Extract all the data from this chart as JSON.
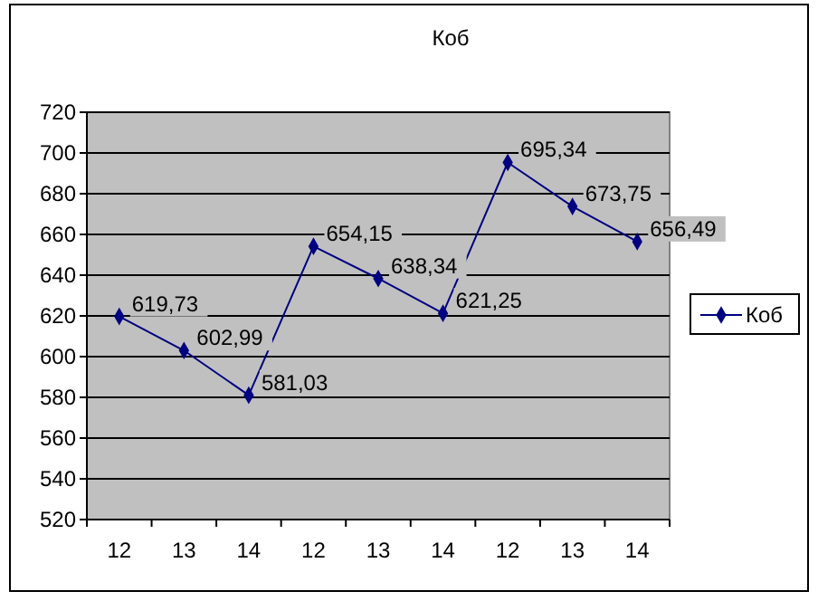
{
  "chart_data": {
    "type": "line",
    "title": "Коб",
    "categories": [
      "12",
      "13",
      "14",
      "12",
      "13",
      "14",
      "12",
      "13",
      "14"
    ],
    "series": [
      {
        "name": "Коб",
        "color": "#000080",
        "values": [
          619.73,
          602.99,
          581.03,
          654.15,
          638.34,
          621.25,
          695.34,
          673.75,
          656.49
        ],
        "value_labels": [
          "619,73",
          "602,99",
          "581,03",
          "654,15",
          "638,34",
          "621,25",
          "695,34",
          "673,75",
          "656,49"
        ]
      }
    ],
    "ylim": [
      520,
      720
    ],
    "yticks": [
      520,
      540,
      560,
      580,
      600,
      620,
      640,
      660,
      680,
      700,
      720
    ],
    "grid": "y",
    "legend": "right",
    "marker": "diamond",
    "line_style": "solid"
  }
}
